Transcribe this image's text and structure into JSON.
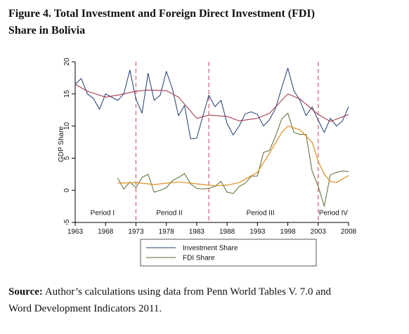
{
  "heading": {
    "line1": "Figure 4. Total Investment and Foreign Direct Investment (FDI)",
    "line2": "Share in Bolivia"
  },
  "source": {
    "label": "Source:",
    "line1": "Author’s calculations using data from Penn World Tables V. 7.0 and",
    "line2": "Word Development Indicators 2011."
  },
  "colors": {
    "investment": "#1f3a6e",
    "fdi": "#556b2f",
    "investment_trend": "#9c2a3a",
    "fdi_trend": "#e08c1a",
    "period_divider": "#d9697a"
  },
  "chart_data": {
    "type": "line",
    "title": "",
    "xlabel": "",
    "ylabel": "GDP Share",
    "xlim": [
      1963,
      2008
    ],
    "ylim": [
      -5,
      20
    ],
    "x_ticks": [
      1963,
      1968,
      1973,
      1978,
      1983,
      1988,
      1993,
      1998,
      2003,
      2008
    ],
    "y_ticks": [
      -5,
      0,
      5,
      10,
      15,
      20
    ],
    "grid": false,
    "legend_position": "bottom",
    "series": [
      {
        "name": "Investment Share",
        "x": [
          1963,
          1964,
          1965,
          1966,
          1967,
          1968,
          1969,
          1970,
          1971,
          1972,
          1973,
          1974,
          1975,
          1976,
          1977,
          1978,
          1979,
          1980,
          1981,
          1982,
          1983,
          1984,
          1985,
          1986,
          1987,
          1988,
          1989,
          1990,
          1991,
          1992,
          1993,
          1994,
          1995,
          1996,
          1997,
          1998,
          1999,
          2000,
          2001,
          2002,
          2003,
          2004,
          2005,
          2006,
          2007,
          2008
        ],
        "y": [
          16.5,
          17.4,
          15.0,
          14.3,
          12.6,
          15.0,
          14.5,
          14.0,
          15.0,
          18.7,
          14.2,
          12.0,
          18.2,
          14.0,
          14.8,
          18.5,
          15.8,
          11.6,
          13.2,
          8.0,
          8.1,
          11.5,
          14.8,
          13.0,
          14.0,
          10.4,
          8.6,
          10.0,
          11.9,
          12.2,
          11.8,
          10.0,
          11.0,
          12.8,
          16.0,
          19.0,
          15.5,
          14.0,
          11.6,
          13.0,
          10.9,
          9.0,
          11.2,
          10.0,
          10.8,
          13.0
        ]
      },
      {
        "name": "FDI Share",
        "x": [
          1970,
          1971,
          1972,
          1973,
          1974,
          1975,
          1976,
          1977,
          1978,
          1979,
          1980,
          1981,
          1982,
          1983,
          1984,
          1985,
          1986,
          1987,
          1988,
          1989,
          1990,
          1991,
          1992,
          1993,
          1994,
          1995,
          1996,
          1997,
          1998,
          1999,
          2000,
          2001,
          2002,
          2003,
          2004,
          2005,
          2006,
          2007,
          2008
        ],
        "y": [
          1.9,
          0.2,
          1.3,
          0.4,
          2.0,
          2.5,
          -0.3,
          0.0,
          0.4,
          1.5,
          2.0,
          2.6,
          1.0,
          0.3,
          0.2,
          0.3,
          0.6,
          1.4,
          -0.3,
          -0.5,
          0.6,
          1.1,
          2.2,
          2.2,
          5.9,
          6.2,
          8.5,
          11.1,
          12.0,
          9.0,
          8.7,
          8.7,
          3.0,
          0.6,
          -2.5,
          2.4,
          2.8,
          3.0,
          2.9
        ]
      },
      {
        "name": "",
        "x": [
          1963,
          1965,
          1968,
          1970,
          1973,
          1975,
          1978,
          1980,
          1983,
          1985,
          1988,
          1990,
          1993,
          1995,
          1998,
          2000,
          2003,
          2005,
          2008
        ],
        "y": [
          16.5,
          15.4,
          14.5,
          14.8,
          15.4,
          15.6,
          15.5,
          14.5,
          11.2,
          11.7,
          11.5,
          10.8,
          11.2,
          12.0,
          15.0,
          14.2,
          11.8,
          10.7,
          11.8
        ]
      },
      {
        "name": "",
        "x": [
          1970,
          1973,
          1976,
          1978,
          1980,
          1983,
          1986,
          1988,
          1990,
          1993,
          1995,
          1997,
          1998,
          2000,
          2002,
          2003,
          2004,
          2005,
          2006,
          2008
        ],
        "y": [
          1.1,
          1.2,
          0.9,
          1.1,
          1.3,
          1.0,
          0.7,
          0.8,
          1.2,
          2.8,
          5.8,
          9.0,
          10.0,
          9.4,
          7.5,
          4.5,
          2.5,
          1.4,
          1.2,
          2.3
        ]
      }
    ],
    "dividers": [
      1973,
      1985,
      2003
    ],
    "annotations": [
      {
        "text": "Period I",
        "x": 1967.5,
        "y": -3.5
      },
      {
        "text": "Period II",
        "x": 1978.5,
        "y": -3.5
      },
      {
        "text": "Period III",
        "x": 1993.5,
        "y": -3.5
      },
      {
        "text": "Period IV",
        "x": 2005.5,
        "y": -3.5
      }
    ]
  }
}
